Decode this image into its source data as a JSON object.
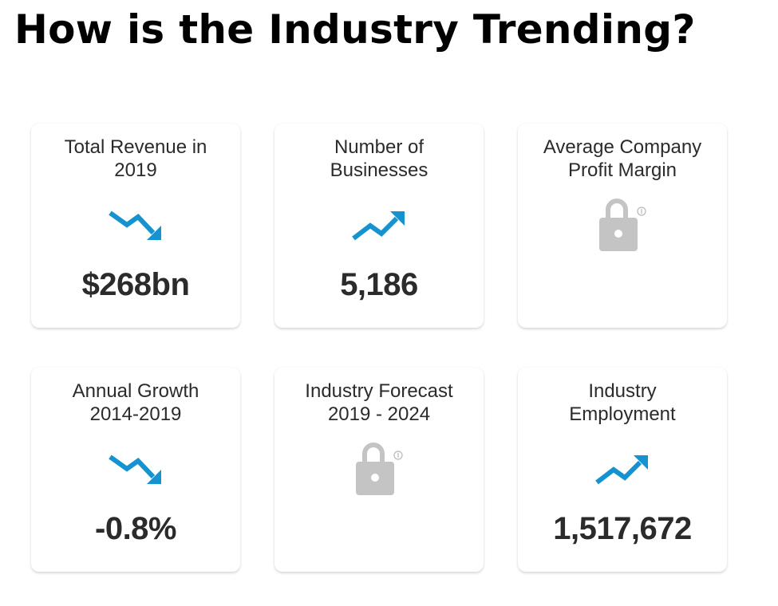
{
  "page": {
    "title": "How is the Industry Trending?"
  },
  "colors": {
    "trend": "#1493d0",
    "lock": "#c4c4c4",
    "text": "#2b2b2b"
  },
  "cards": [
    {
      "label_line1": "Total Revenue in",
      "label_line2": "2019",
      "value": "$268bn",
      "icon": "trend-down-icon"
    },
    {
      "label_line1": "Number of",
      "label_line2": "Businesses",
      "value": "5,186",
      "icon": "trend-up-icon"
    },
    {
      "label_line1": "Average Company",
      "label_line2": "Profit Margin",
      "value": "",
      "icon": "lock-icon"
    },
    {
      "label_line1": "Annual Growth",
      "label_line2": "2014-2019",
      "value": "-0.8%",
      "icon": "trend-down-icon"
    },
    {
      "label_line1": "Industry Forecast",
      "label_line2": "2019 - 2024",
      "value": "",
      "icon": "lock-icon"
    },
    {
      "label_line1": "Industry",
      "label_line2": "Employment",
      "value": "1,517,672",
      "icon": "trend-up-icon"
    }
  ]
}
